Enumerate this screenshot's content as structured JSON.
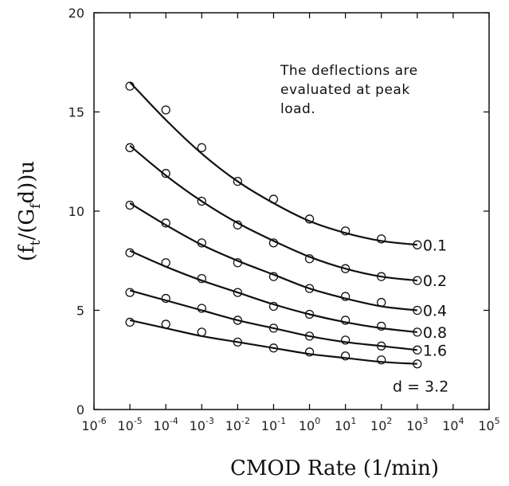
{
  "chart_data": {
    "type": "scatter",
    "title": "",
    "xlabel": "CMOD Rate (1/min)",
    "ylabel_parts": [
      "(f",
      "t",
      "/(G",
      "f",
      "d))u"
    ],
    "x_scale": "log",
    "xlim": [
      1e-06,
      100000.0
    ],
    "ylim": [
      0,
      20
    ],
    "x_ticks": [
      {
        "base": "10",
        "exp": "-6"
      },
      {
        "base": "10",
        "exp": "-5"
      },
      {
        "base": "10",
        "exp": "-4"
      },
      {
        "base": "10",
        "exp": "-3"
      },
      {
        "base": "10",
        "exp": "-2"
      },
      {
        "base": "10",
        "exp": "-1"
      },
      {
        "base": "10",
        "exp": "0"
      },
      {
        "base": "10",
        "exp": "1"
      },
      {
        "base": "10",
        "exp": "2"
      },
      {
        "base": "10",
        "exp": "3"
      },
      {
        "base": "10",
        "exp": "4"
      },
      {
        "base": "10",
        "exp": "5"
      }
    ],
    "y_ticks": [
      "0",
      "5",
      "10",
      "15",
      "20"
    ],
    "annotation": [
      "The deflections are",
      "evaluated at peak",
      "load."
    ],
    "grid": false,
    "x": [
      1e-05,
      0.0001,
      0.001,
      0.01,
      0.1,
      1,
      10,
      100,
      1000
    ],
    "series": [
      {
        "name": "0.1",
        "label": "0.1",
        "points": [
          16.3,
          15.1,
          13.2,
          11.5,
          10.6,
          9.6,
          9.0,
          8.6,
          8.3
        ],
        "fit": [
          16.5,
          14.6,
          12.9,
          11.5,
          10.4,
          9.5,
          8.9,
          8.5,
          8.3
        ]
      },
      {
        "name": "0.2",
        "label": "0.2",
        "points": [
          13.2,
          11.9,
          10.5,
          9.3,
          8.4,
          7.6,
          7.1,
          6.7,
          6.5
        ],
        "fit": [
          13.3,
          11.8,
          10.5,
          9.4,
          8.5,
          7.7,
          7.1,
          6.7,
          6.5
        ]
      },
      {
        "name": "0.4",
        "label": "0.4",
        "points": [
          10.3,
          9.4,
          8.4,
          7.4,
          6.7,
          6.1,
          5.7,
          5.4,
          5.0
        ],
        "fit": [
          10.4,
          9.3,
          8.3,
          7.5,
          6.8,
          6.1,
          5.6,
          5.2,
          5.0
        ]
      },
      {
        "name": "0.8",
        "label": "0.8",
        "points": [
          7.9,
          7.4,
          6.6,
          5.9,
          5.2,
          4.8,
          4.5,
          4.2,
          3.9
        ],
        "fit": [
          8.0,
          7.2,
          6.5,
          5.9,
          5.3,
          4.8,
          4.4,
          4.1,
          3.9
        ]
      },
      {
        "name": "1.6",
        "label": "1.6",
        "points": [
          5.9,
          5.6,
          5.1,
          4.5,
          4.1,
          3.7,
          3.5,
          3.2,
          3.0
        ],
        "fit": [
          6.0,
          5.5,
          5.0,
          4.5,
          4.1,
          3.7,
          3.4,
          3.2,
          3.0
        ]
      },
      {
        "name": "3.2",
        "label": "d = 3.2",
        "points": [
          4.4,
          4.3,
          3.9,
          3.4,
          3.1,
          2.9,
          2.7,
          2.5,
          2.3
        ],
        "fit": [
          4.5,
          4.1,
          3.7,
          3.4,
          3.1,
          2.8,
          2.6,
          2.4,
          2.3
        ]
      }
    ]
  }
}
